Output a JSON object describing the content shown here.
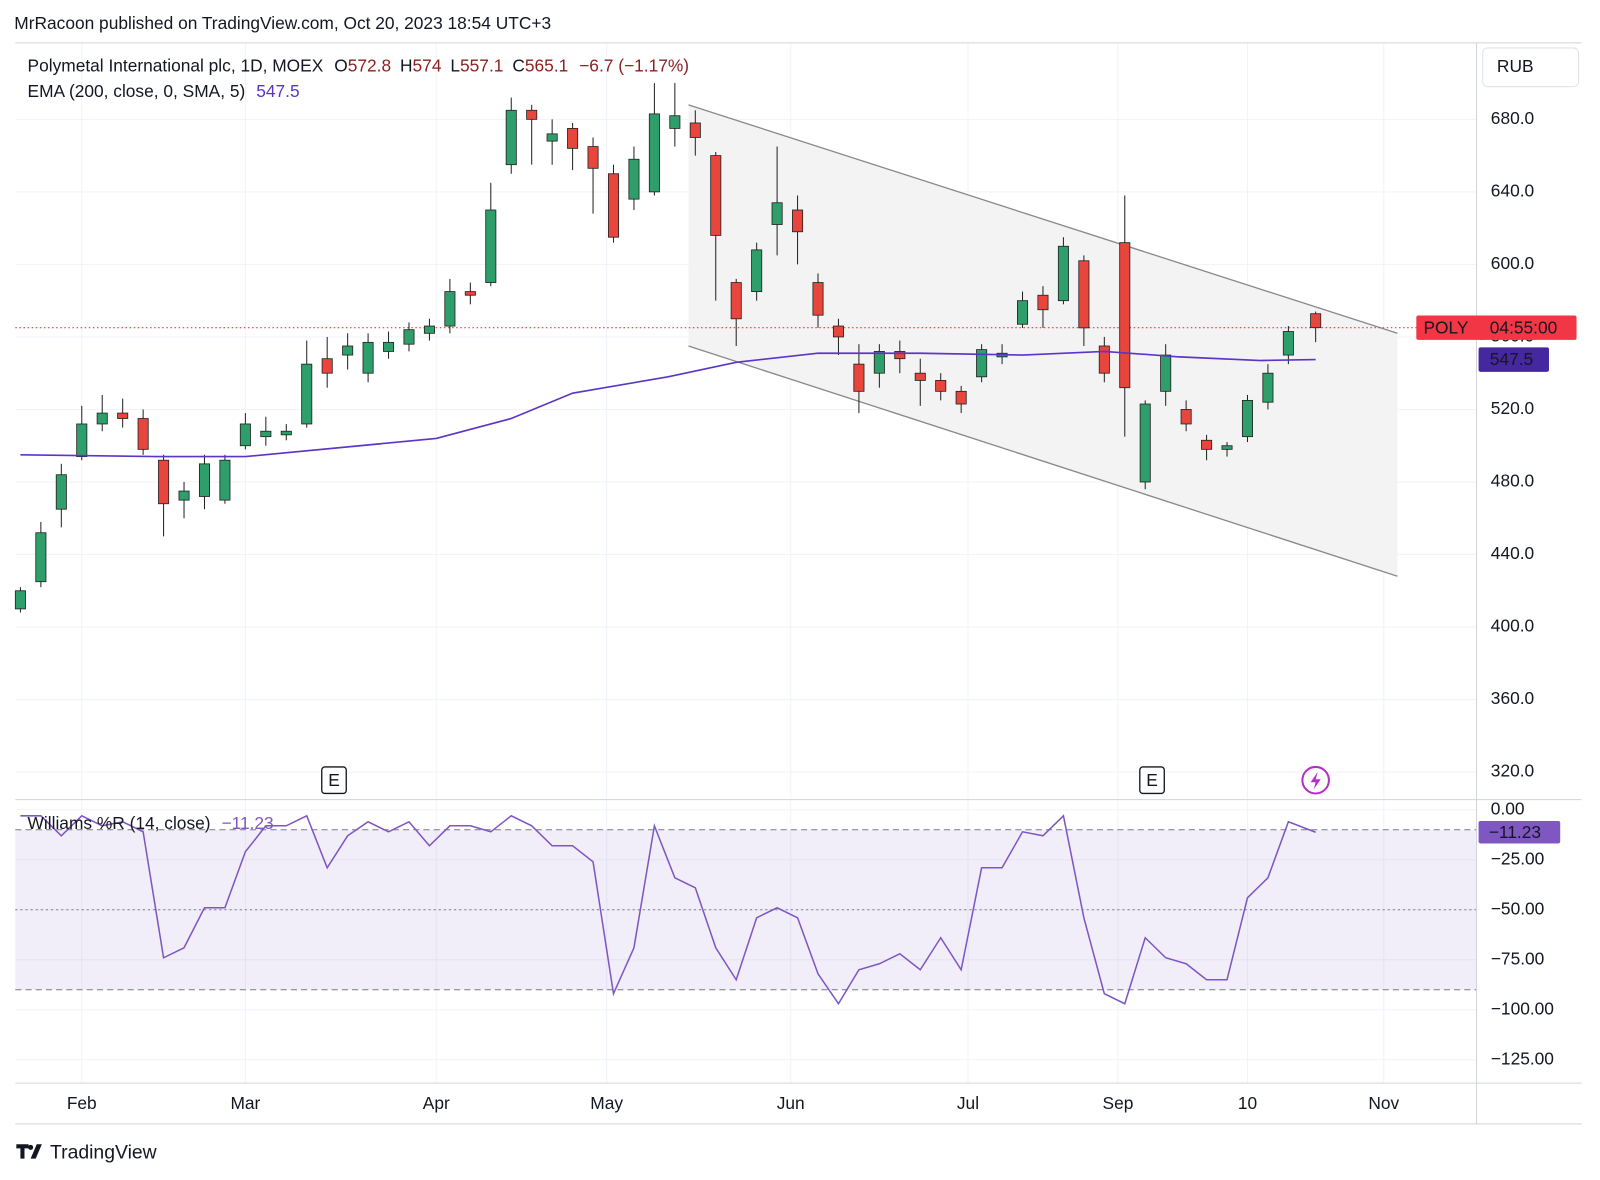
{
  "header": {
    "text": "MrRacoon published on TradingView.com, Oct 20, 2023 18:54 UTC+3"
  },
  "footer": {
    "brand": "TradingView"
  },
  "chart_data": [
    {
      "type": "candlestick",
      "legend": {
        "symbol": "Polymetal International plc, 1D, MOEX",
        "open_label": "O",
        "high_label": "H",
        "low_label": "L",
        "close_label": "C",
        "change": "−6.7 (−1.17%)"
      },
      "currency": "RUB",
      "symbol_tag": "POLY",
      "countdown": "04:55:00",
      "colors": {
        "up": "#2e9e6b",
        "down": "#e8453c",
        "outline": "#222222",
        "price_line": "#f23645"
      },
      "xlim": [
        -0.75,
        213.6
      ],
      "ylim": [
        305.4,
        722.2
      ],
      "yticks": [
        {
          "value": 320,
          "label": "320.0"
        },
        {
          "value": 360,
          "label": "360.0"
        },
        {
          "value": 400,
          "label": "400.0"
        },
        {
          "value": 440,
          "label": "440.0"
        },
        {
          "value": 480,
          "label": "480.0"
        },
        {
          "value": 520,
          "label": "520.0"
        },
        {
          "value": 560,
          "label": "560.0"
        },
        {
          "value": 600,
          "label": "600.0"
        },
        {
          "value": 640,
          "label": "640.0"
        },
        {
          "value": 680,
          "label": "680.0"
        }
      ],
      "grid": true,
      "x": [
        0,
        3,
        6,
        9,
        12,
        15,
        18,
        21,
        24,
        27,
        30,
        33,
        36,
        39,
        42,
        45,
        48,
        51,
        54,
        57,
        60,
        63,
        66,
        69,
        72,
        75,
        78,
        81,
        84,
        87,
        90,
        93,
        96,
        99,
        102,
        105,
        108,
        111,
        114,
        117,
        120,
        123,
        126,
        129,
        132,
        135,
        138,
        141,
        144,
        147,
        150,
        153,
        156,
        159,
        162,
        165,
        168,
        171,
        174,
        177,
        180,
        183,
        186,
        190
      ],
      "open": [
        410,
        425,
        465,
        494,
        512,
        518,
        515,
        492,
        470,
        472,
        470,
        500,
        505,
        506,
        512,
        548,
        550,
        540,
        552,
        556,
        562,
        566,
        585,
        590,
        655,
        685,
        668,
        675,
        665,
        650,
        636,
        640,
        675,
        678,
        660,
        590,
        585,
        622,
        630,
        590,
        566,
        545,
        540,
        552,
        540,
        536,
        530,
        538,
        549,
        567,
        583,
        580,
        602,
        555,
        612,
        480,
        530,
        520,
        503,
        498,
        505,
        524,
        550,
        572.8
      ],
      "high": [
        422,
        458,
        490,
        522,
        528,
        526,
        520,
        495,
        480,
        495,
        495,
        518,
        516,
        512,
        558,
        560,
        562,
        562,
        563,
        568,
        570,
        592,
        590,
        645,
        692,
        688,
        680,
        678,
        670,
        655,
        665,
        700,
        700,
        685,
        662,
        592,
        612,
        665,
        638,
        595,
        570,
        556,
        556,
        558,
        548,
        540,
        533,
        556,
        556,
        585,
        588,
        615,
        605,
        560,
        638,
        525,
        556,
        525,
        506,
        502,
        528,
        545,
        566,
        574
      ],
      "low": [
        408,
        422,
        455,
        492,
        508,
        510,
        495,
        450,
        460,
        465,
        468,
        498,
        500,
        503,
        510,
        532,
        542,
        535,
        548,
        552,
        558,
        562,
        578,
        588,
        650,
        655,
        655,
        652,
        628,
        612,
        630,
        638,
        665,
        660,
        580,
        555,
        580,
        605,
        600,
        565,
        550,
        518,
        532,
        540,
        522,
        525,
        518,
        535,
        545,
        565,
        565,
        578,
        555,
        535,
        505,
        476,
        522,
        508,
        492,
        494,
        502,
        520,
        545,
        557.1
      ],
      "close": [
        420,
        452,
        484,
        512,
        518,
        515,
        498,
        468,
        475,
        490,
        492,
        512,
        508,
        508,
        545,
        540,
        555,
        557,
        557,
        564,
        566,
        585,
        583,
        630,
        685,
        680,
        672,
        664,
        653,
        615,
        658,
        683,
        682,
        670,
        616,
        570,
        608,
        634,
        618,
        572,
        560,
        530,
        552,
        548,
        536,
        530,
        523,
        553,
        551,
        580,
        575,
        610,
        565,
        540,
        532,
        523,
        550,
        512,
        498,
        500,
        525,
        540,
        563,
        565.1
      ],
      "ema": {
        "name": "EMA (200, close, 0, SMA, 5)",
        "color": "#5b35c9",
        "x": [
          0,
          20,
          33,
          61,
          72,
          81,
          95,
          105,
          117,
          132,
          147,
          159,
          170,
          182,
          190
        ],
        "values": [
          495,
          494,
          494,
          504,
          515,
          529,
          538,
          546,
          551,
          551,
          550,
          552,
          549,
          547,
          547.5
        ]
      },
      "channel": {
        "color": "#8a8a8a",
        "fill": "#f3f3f3",
        "upper": {
          "x": [
            98,
            202
          ],
          "y": [
            688,
            562
          ]
        },
        "lower": {
          "x": [
            98,
            202
          ],
          "y": [
            555,
            428
          ]
        }
      },
      "earnings": [
        {
          "x": 46,
          "label": "E"
        },
        {
          "x": 166,
          "label": "E"
        }
      ],
      "alert_x": 190
    },
    {
      "type": "line",
      "legend": {
        "name": "Williams %R (14, close)",
        "value": {
          "value": -11.23,
          "label": "−11.23"
        }
      },
      "color": "#7e57c2",
      "xlim": [
        -0.75,
        213.6
      ],
      "xticks": [
        {
          "value": 9,
          "label": "Feb"
        },
        {
          "value": 33,
          "label": "Mar"
        },
        {
          "value": 61,
          "label": "Apr"
        },
        {
          "value": 86,
          "label": "May"
        },
        {
          "value": 113,
          "label": "Jun"
        },
        {
          "value": 139,
          "label": "Jul"
        },
        {
          "value": 161,
          "label": "Sep"
        },
        {
          "value": 180,
          "label": "10"
        },
        {
          "value": 200,
          "label": "Nov"
        }
      ],
      "ylim": [
        -136.7,
        4.6
      ],
      "yticks": [
        {
          "value": 0,
          "label": "0.00"
        },
        {
          "value": -25,
          "label": "−25.00"
        },
        {
          "value": -50,
          "label": "−50.00"
        },
        {
          "value": -75,
          "label": "−75.00"
        },
        {
          "value": -100,
          "label": "−100.00"
        },
        {
          "value": -125,
          "label": "−125.00"
        }
      ],
      "bands": [
        -10,
        -90
      ],
      "midline": -50,
      "grid": true,
      "x": [
        0,
        3,
        6,
        9,
        12,
        15,
        18,
        21,
        24,
        27,
        30,
        33,
        36,
        39,
        42,
        45,
        48,
        51,
        54,
        57,
        60,
        63,
        66,
        69,
        72,
        75,
        78,
        81,
        84,
        87,
        90,
        93,
        96,
        99,
        102,
        105,
        108,
        111,
        114,
        117,
        120,
        123,
        126,
        129,
        132,
        135,
        138,
        141,
        144,
        147,
        150,
        153,
        156,
        159,
        162,
        165,
        168,
        171,
        174,
        177,
        180,
        183,
        186,
        190
      ],
      "values": [
        -3,
        -3,
        -13,
        -3,
        -8,
        -6,
        -11,
        -74,
        -69,
        -49,
        -49,
        -21,
        -8,
        -8,
        -3,
        -29,
        -13,
        -6,
        -11,
        -6,
        -18,
        -8,
        -8,
        -11,
        -3,
        -8,
        -18,
        -18,
        -26,
        -92,
        -69,
        -8,
        -34,
        -39,
        -69,
        -85,
        -54,
        -49,
        -54,
        -82,
        -97,
        -80,
        -77,
        -72,
        -80,
        -64,
        -80,
        -29,
        -29,
        -11,
        -13,
        -3,
        -54,
        -92,
        -97,
        -64,
        -74,
        -77,
        -85,
        -85,
        -44,
        -34,
        -6,
        -11.23
      ]
    }
  ]
}
